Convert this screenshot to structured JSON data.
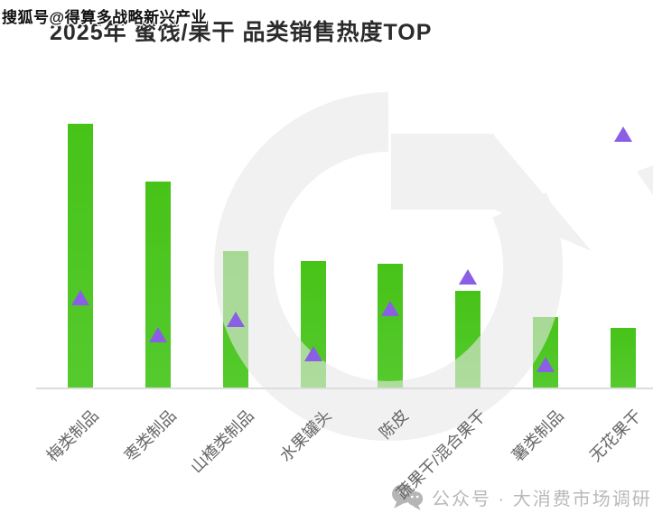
{
  "watermarks": {
    "sohu": "搜狐号@得算多战略新兴产业",
    "footer": {
      "icon": "wechat-icon",
      "text": "公众号 · 大消费市场调研"
    }
  },
  "title": "2025年 蜜饯/果干 品类销售热度TOP",
  "colors": {
    "bar_top": "#47C318",
    "bar_bottom": "#55CA2E",
    "marker": "#8A5FE6",
    "axis_line": "#DDDDDD",
    "category_label": "#666666",
    "title_text": "#2B2B2B",
    "background_logo": "#E8E8E8",
    "footer_text": "#B9B9B9"
  },
  "chart_data": {
    "type": "bar",
    "title": "2025年 蜜饯/果干 品类销售热度TOP",
    "categories": [
      "梅类制品",
      "枣类制品",
      "山楂类制品",
      "水果罐头",
      "陈皮",
      "蔬果干/混合果干",
      "薯类制品",
      "无花果干"
    ],
    "series": [
      {
        "name": "bars",
        "type": "bar",
        "values": [
          100,
          78,
          52,
          48,
          47,
          37,
          27,
          23
        ]
      },
      {
        "name": "triangle_markers",
        "type": "scatter",
        "marker": "triangle-up",
        "values": [
          34,
          20,
          26,
          13,
          30,
          42,
          9,
          96
        ]
      }
    ],
    "ylim": [
      0,
      100
    ],
    "value_axis_visible": false,
    "x_label_rotation_deg": 45,
    "grid": false,
    "legend": "none"
  }
}
